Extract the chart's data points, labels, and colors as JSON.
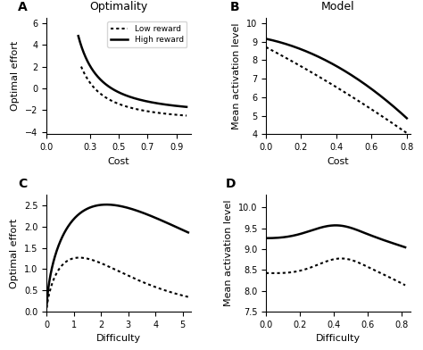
{
  "panel_A": {
    "title": "Optimality",
    "xlabel": "Cost",
    "ylabel": "Optimal effort",
    "xlim": [
      0.15,
      1.0
    ],
    "ylim": [
      -4.2,
      6.5
    ],
    "yticks": [
      -4,
      -2,
      0,
      2,
      4,
      6
    ],
    "xticks": [
      0,
      0.3,
      0.5,
      0.7,
      0.9
    ]
  },
  "panel_B": {
    "title": "Model",
    "xlabel": "Cost",
    "ylabel": "Mean activation level",
    "xlim": [
      0,
      0.82
    ],
    "ylim": [
      4,
      10.3
    ],
    "yticks": [
      4,
      5,
      6,
      7,
      8,
      9,
      10
    ],
    "xticks": [
      0,
      0.2,
      0.4,
      0.6,
      0.8
    ]
  },
  "panel_C": {
    "xlabel": "Difficulty",
    "ylabel": "Optimal effort",
    "xlim": [
      0,
      5.3
    ],
    "ylim": [
      0,
      2.75
    ],
    "yticks": [
      0,
      0.5,
      1.0,
      1.5,
      2.0,
      2.5
    ],
    "xticks": [
      0,
      1,
      2,
      3,
      4,
      5
    ]
  },
  "panel_D": {
    "xlabel": "Difficulty",
    "ylabel": "Mean activation level",
    "xlim": [
      0,
      0.85
    ],
    "ylim": [
      7.5,
      10.3
    ],
    "yticks": [
      7.5,
      8.0,
      8.5,
      9.0,
      9.5,
      10.0
    ],
    "xticks": [
      0,
      0.2,
      0.4,
      0.6,
      0.8
    ]
  },
  "legend": {
    "low_label": "Low reward",
    "high_label": "High reward"
  },
  "line_color": "#000000",
  "label_fontsize": 8,
  "title_fontsize": 9,
  "tick_fontsize": 7,
  "panel_label_fontsize": 10
}
